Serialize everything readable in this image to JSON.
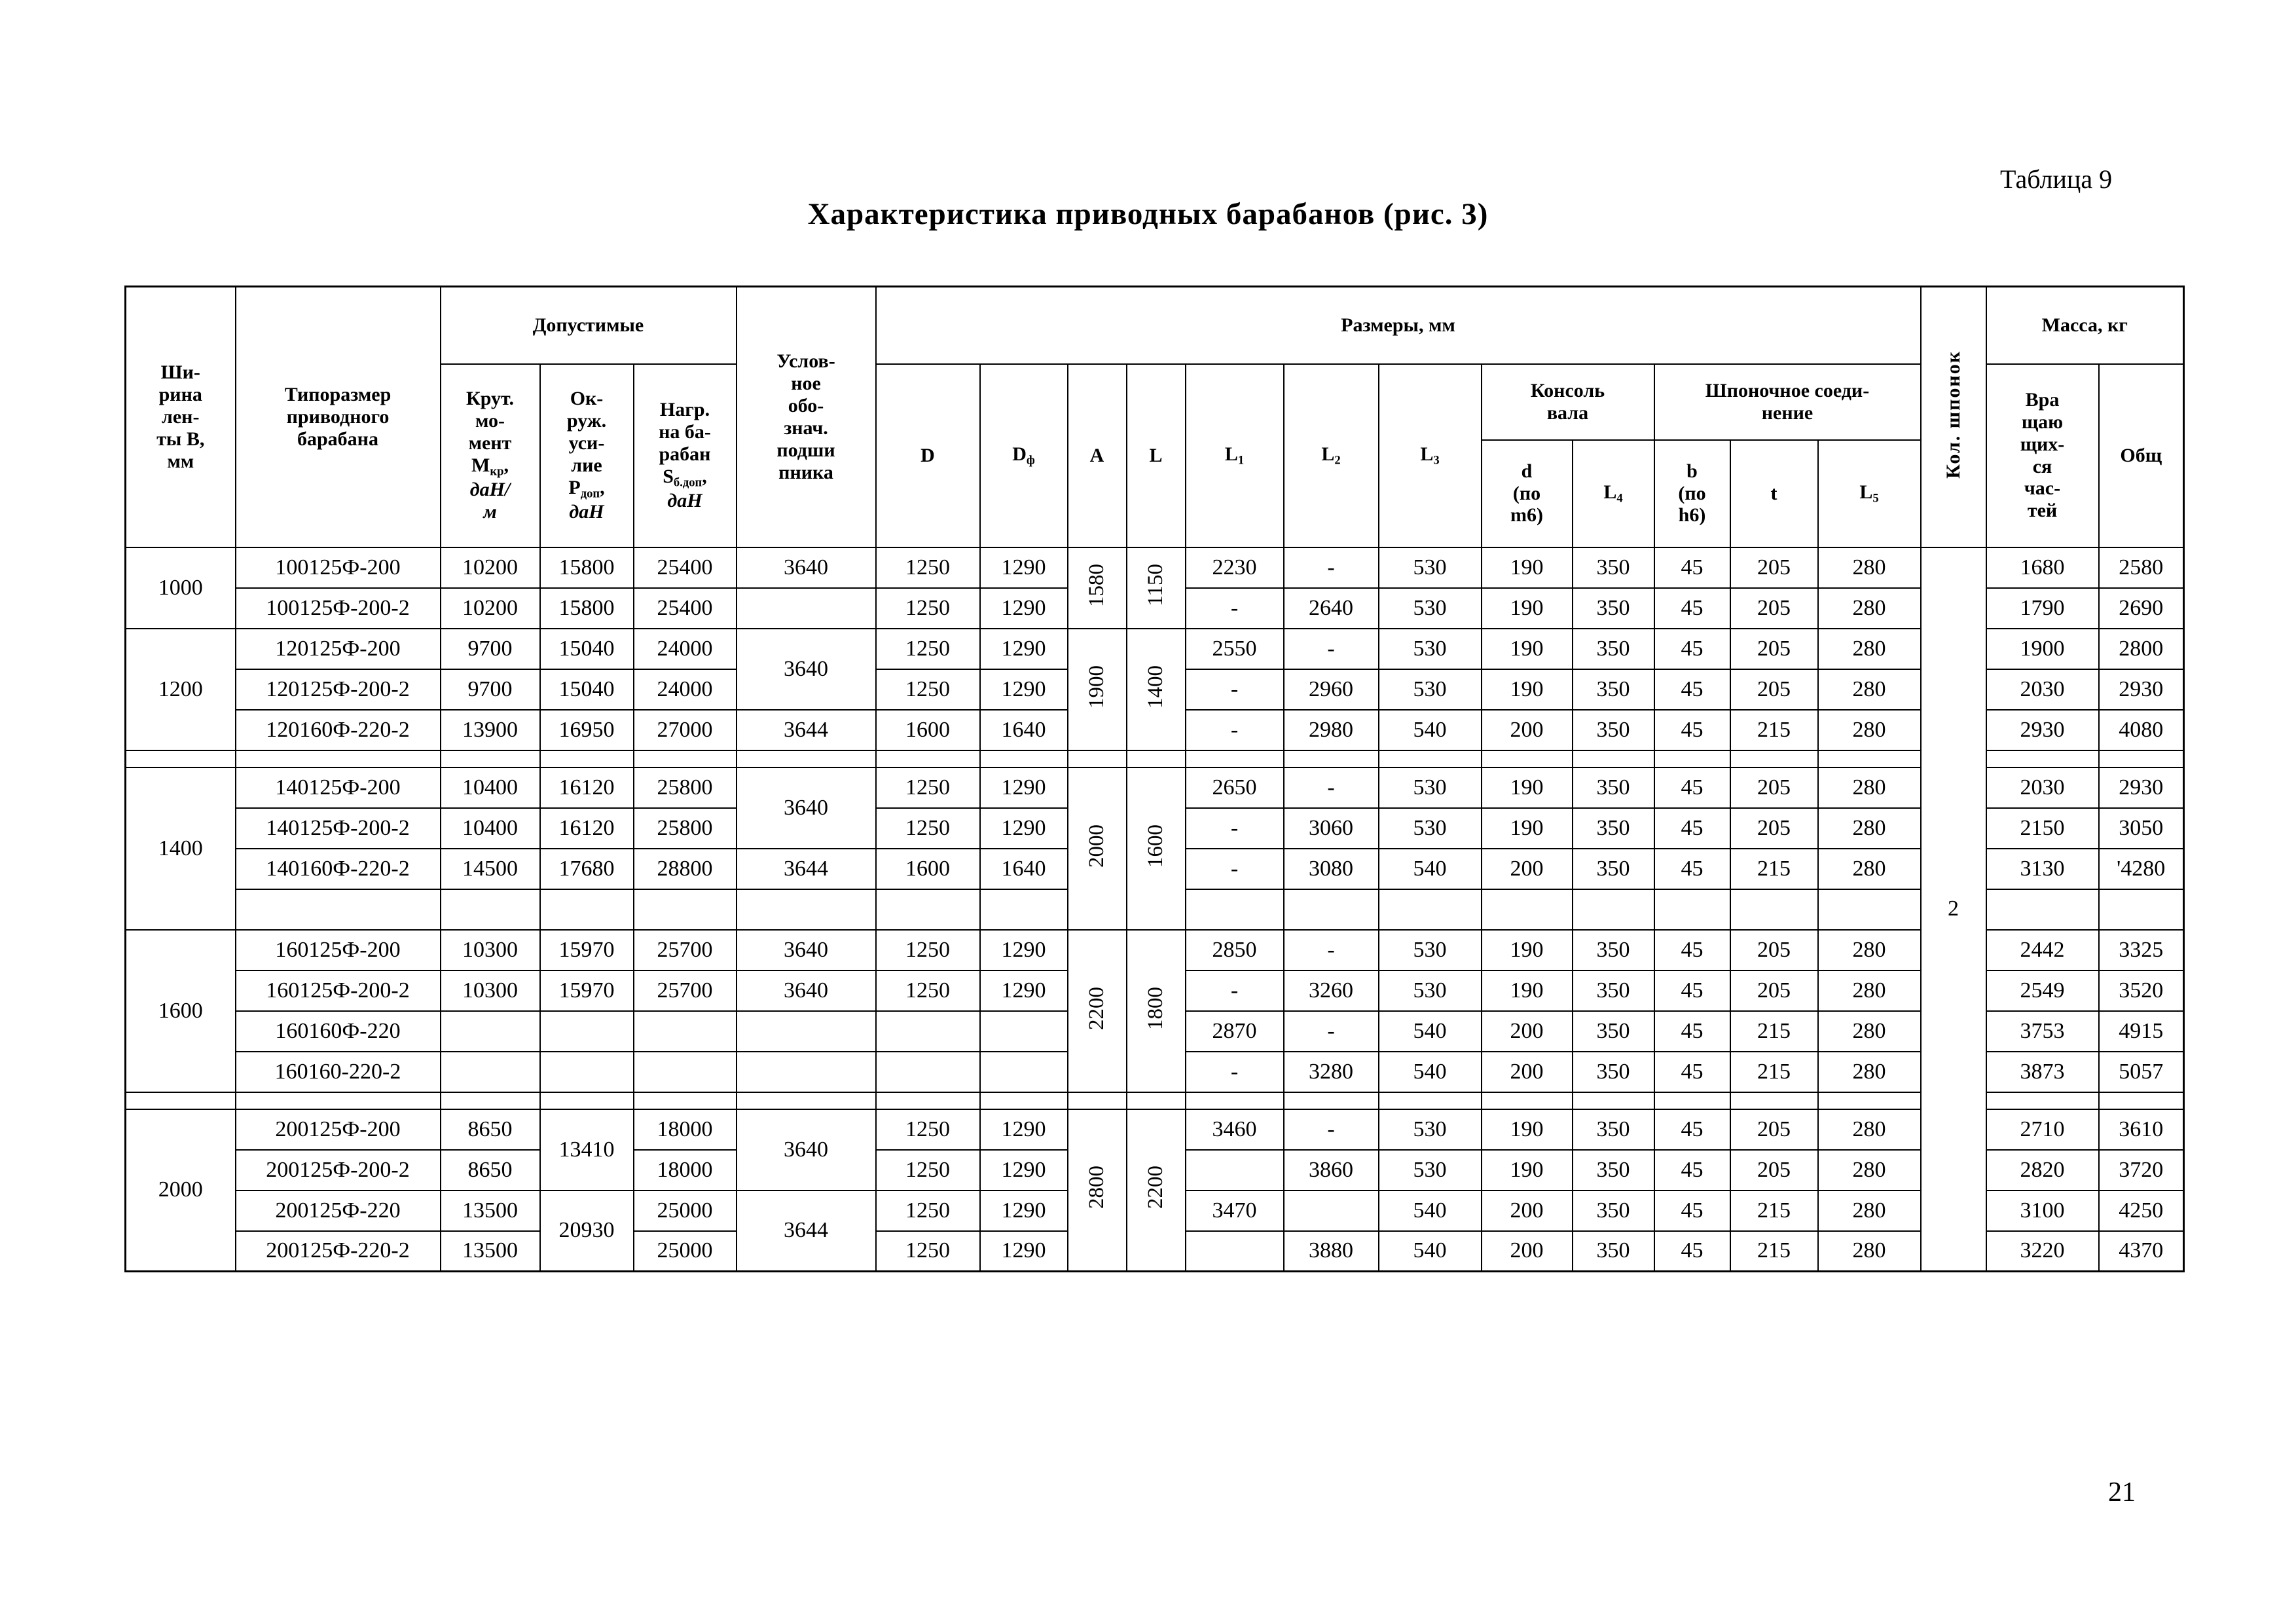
{
  "page": {
    "table_label": "Таблица 9",
    "title": "Характеристика приводных барабанов (рис. 3)",
    "page_number": "21"
  },
  "header": {
    "belt_width": "Ши-<br>рина<br>лен-<br>ты В,<br>мм",
    "drum_type": "Типоразмер<br>приводного<br>барабана",
    "permissible": "Допустимые",
    "torque": "Крут.<br>мо-<br>мент<br>М<sub>кр</sub>,<br><i>даН/<br>м</i>",
    "circumferential_force": "Ок-<br>руж.<br>уси-<br>лие<br>Р<sub>доп</sub>,<br><i>даН</i>",
    "drum_load": "Нагр.<br>на ба-<br>рабан<br>S<sub>б.доп</sub>,<br><i>даН</i>",
    "bearing_designation": "Услов-<br>ное<br>обо-<br>знач.<br>подши<br>пника",
    "dimensions": "Размеры, мм",
    "col_D": "D",
    "col_Df": "D<sub>ф</sub>",
    "col_A": "А",
    "col_L": "L",
    "col_L1": "L<sub>1</sub>",
    "col_L2": "L<sub>2</sub>",
    "col_L3": "L<sub>3</sub>",
    "shaft_console": "Консоль<br>вала",
    "key_joint": "Шпоночное соеди-<br>нение",
    "col_d": "d<br>(по<br>m6)",
    "col_L4": "L<sub>4</sub>",
    "col_b": "b<br>(по<br>h6)",
    "col_t": "t",
    "col_L5": "L<sub>5</sub>",
    "keys_count": "Кол. шпонок",
    "mass": "Масса, кг",
    "rotating_parts": "Вра<br>щаю<br>щих-<br>ся<br>час-<br>тей",
    "total": "Общ"
  },
  "body": {
    "rows": [
      {
        "cells": [
          {
            "v": "1000",
            "rs": 2,
            "c": "g"
          },
          "100125Ф-200",
          "10200",
          "15800",
          "25400",
          "3640",
          "1250",
          "1290",
          {
            "v": "1580",
            "rs": 2,
            "c": "rot"
          },
          {
            "v": "1150",
            "rs": 2,
            "c": "rot"
          },
          "2230",
          "-",
          "530",
          "190",
          "350",
          "45",
          "205",
          "280",
          {
            "v": "2",
            "rs": 19,
            "c": "keys"
          },
          "1680",
          "2580"
        ]
      },
      {
        "cells": [
          "100125Ф-200-2",
          "10200",
          "15800",
          "25400",
          "",
          "1250",
          "1290",
          "-",
          "2640",
          "530",
          "190",
          "350",
          "45",
          "205",
          "280",
          "1790",
          "2690"
        ]
      },
      {
        "cells": [
          {
            "v": "1200",
            "rs": 3,
            "c": "g"
          },
          "120125Ф-200",
          "9700",
          "15040",
          "24000",
          {
            "v": "3640",
            "rs": 2
          },
          "1250",
          "1290",
          {
            "v": "1900",
            "rs": 3,
            "c": "rot"
          },
          {
            "v": "1400",
            "rs": 3,
            "c": "rot"
          },
          "2550",
          "-",
          "530",
          "190",
          "350",
          "45",
          "205",
          "280",
          "1900",
          "2800"
        ]
      },
      {
        "cells": [
          "120125Ф-200-2",
          "9700",
          "15040",
          "24000",
          "1250",
          "1290",
          "-",
          "2960",
          "530",
          "190",
          "350",
          "45",
          "205",
          "280",
          "2030",
          "2930"
        ]
      },
      {
        "cells": [
          "120160Ф-220-2",
          "13900",
          "16950",
          "27000",
          "3644",
          "1600",
          "1640",
          "-",
          "2980",
          "540",
          "200",
          "350",
          "45",
          "215",
          "280",
          "2930",
          "4080"
        ]
      },
      {
        "sep": true,
        "cells": [
          "",
          "",
          "",
          "",
          "",
          "",
          "",
          "",
          "",
          "",
          "",
          "",
          "",
          "",
          "",
          "",
          "",
          "",
          "",
          ""
        ]
      },
      {
        "cells": [
          {
            "v": "1400",
            "rs": 4,
            "c": "g"
          },
          "140125Ф-200",
          "10400",
          "16120",
          "25800",
          {
            "v": "3640",
            "rs": 2
          },
          "1250",
          "1290",
          {
            "v": "2000",
            "rs": 4,
            "c": "rot"
          },
          {
            "v": "1600",
            "rs": 4,
            "c": "rot"
          },
          "2650",
          "-",
          "530",
          "190",
          "350",
          "45",
          "205",
          "280",
          "2030",
          "2930"
        ]
      },
      {
        "cells": [
          "140125Ф-200-2",
          "10400",
          "16120",
          "25800",
          "1250",
          "1290",
          "-",
          "3060",
          "530",
          "190",
          "350",
          "45",
          "205",
          "280",
          "2150",
          "3050"
        ]
      },
      {
        "cells": [
          "140160Ф-220-2",
          "14500",
          "17680",
          "28800",
          "3644",
          "1600",
          "1640",
          "-",
          "3080",
          "540",
          "200",
          "350",
          "45",
          "215",
          "280",
          "3130",
          "'4280"
        ]
      },
      {
        "cells": [
          "",
          "",
          "",
          "",
          "",
          "",
          "",
          "",
          "",
          "",
          "",
          "",
          "",
          "",
          "",
          "",
          ""
        ]
      },
      {
        "cells": [
          {
            "v": "1600",
            "rs": 4,
            "c": "g"
          },
          "160125Ф-200",
          "10300",
          "15970",
          "25700",
          "3640",
          "1250",
          "1290",
          {
            "v": "2200",
            "rs": 4,
            "c": "rot"
          },
          {
            "v": "1800",
            "rs": 4,
            "c": "rot"
          },
          "2850",
          "-",
          "530",
          "190",
          "350",
          "45",
          "205",
          "280",
          "2442",
          "3325"
        ]
      },
      {
        "cells": [
          "160125Ф-200-2",
          "10300",
          "15970",
          "25700",
          "3640",
          "1250",
          "1290",
          "-",
          "3260",
          "530",
          "190",
          "350",
          "45",
          "205",
          "280",
          "2549",
          "3520"
        ]
      },
      {
        "cells": [
          "160160Ф-220",
          "",
          "",
          "",
          "",
          "",
          "",
          "2870",
          "-",
          "540",
          "200",
          "350",
          "45",
          "215",
          "280",
          "3753",
          "4915"
        ]
      },
      {
        "cells": [
          "160160-220-2",
          "",
          "",
          "",
          "",
          "",
          "",
          "-",
          "3280",
          "540",
          "200",
          "350",
          "45",
          "215",
          "280",
          "3873",
          "5057"
        ]
      },
      {
        "sep": true,
        "cells": [
          "",
          "",
          "",
          "",
          "",
          "",
          "",
          "",
          "",
          "",
          "",
          "",
          "",
          "",
          "",
          "",
          "",
          "",
          "",
          ""
        ]
      },
      {
        "cells": [
          {
            "v": "2000",
            "rs": 4,
            "c": "g"
          },
          "200125Ф-200",
          "8650",
          {
            "v": "13410",
            "rs": 2
          },
          "18000",
          {
            "v": "3640",
            "rs": 2
          },
          "1250",
          "1290",
          {
            "v": "2800",
            "rs": 4,
            "c": "rot"
          },
          {
            "v": "2200",
            "rs": 4,
            "c": "rot"
          },
          "3460",
          "-",
          "530",
          "190",
          "350",
          "45",
          "205",
          "280",
          "2710",
          "3610"
        ]
      },
      {
        "cells": [
          "200125Ф-200-2",
          "8650",
          "18000",
          "1250",
          "1290",
          "",
          "3860",
          "530",
          "190",
          "350",
          "45",
          "205",
          "280",
          "2820",
          "3720"
        ]
      },
      {
        "cells": [
          "200125Ф-220",
          "13500",
          {
            "v": "20930",
            "rs": 2
          },
          "25000",
          {
            "v": "3644",
            "rs": 2
          },
          "1250",
          "1290",
          "3470",
          "",
          "540",
          "200",
          "350",
          "45",
          "215",
          "280",
          "3100",
          "4250"
        ]
      },
      {
        "cells": [
          "200125Ф-220-2",
          "13500",
          "25000",
          "1250",
          "1290",
          "",
          "3880",
          "540",
          "200",
          "350",
          "45",
          "215",
          "280",
          "3220",
          "4370"
        ]
      }
    ]
  }
}
